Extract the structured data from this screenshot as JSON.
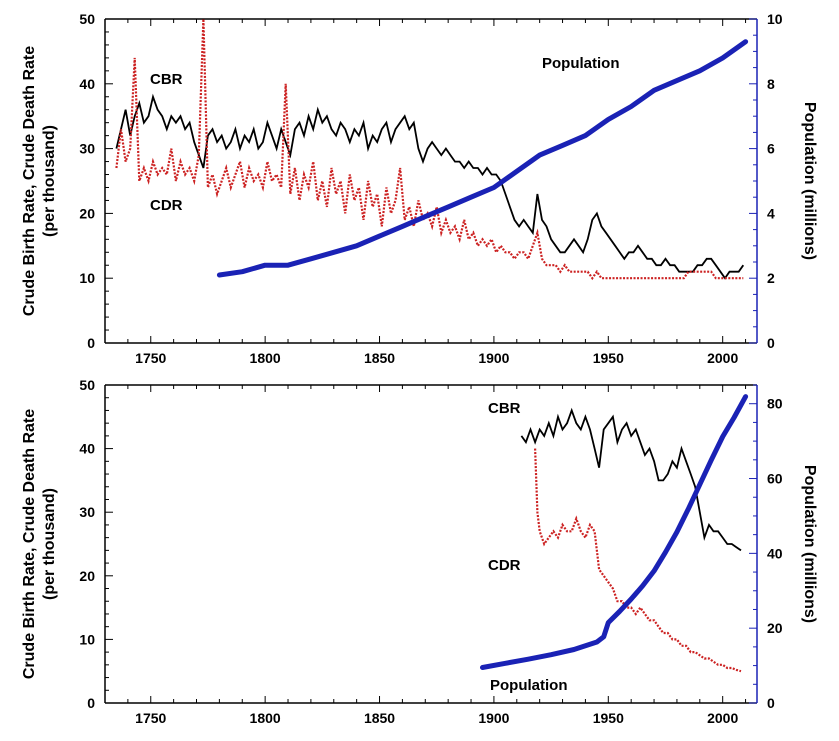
{
  "colors": {
    "cbr": "#000000",
    "cdr": "#cc2222",
    "population": "#1a22b5",
    "right_axis": "#1a22b5",
    "left_axis": "#000000"
  },
  "chart_data": [
    {
      "type": "line",
      "x_ticks": [
        1750,
        1800,
        1850,
        1900,
        1950,
        2000
      ],
      "xlim": [
        1730,
        2015
      ],
      "ylim": [
        0,
        50
      ],
      "y_ticks": [
        0,
        10,
        20,
        30,
        40,
        50
      ],
      "y2lim": [
        0,
        10
      ],
      "y2_ticks": [
        0,
        2,
        4,
        6,
        8,
        10
      ],
      "ylabel_line1": "Crude Birth Rate, Crude Death Rate",
      "ylabel_line2": "(per thousand)",
      "y2label": "Population (millions)",
      "series": [
        {
          "name": "CBR",
          "axis": "left",
          "style": "solid",
          "x": [
            1735,
            1737,
            1739,
            1741,
            1743,
            1745,
            1747,
            1749,
            1751,
            1753,
            1755,
            1757,
            1759,
            1761,
            1763,
            1765,
            1767,
            1769,
            1771,
            1773,
            1775,
            1777,
            1779,
            1781,
            1783,
            1785,
            1787,
            1789,
            1791,
            1793,
            1795,
            1797,
            1799,
            1801,
            1803,
            1805,
            1807,
            1809,
            1811,
            1813,
            1815,
            1817,
            1819,
            1821,
            1823,
            1825,
            1827,
            1829,
            1831,
            1833,
            1835,
            1837,
            1839,
            1841,
            1843,
            1845,
            1847,
            1849,
            1851,
            1853,
            1855,
            1857,
            1859,
            1861,
            1863,
            1865,
            1867,
            1869,
            1871,
            1873,
            1875,
            1877,
            1879,
            1881,
            1883,
            1885,
            1887,
            1889,
            1891,
            1893,
            1895,
            1897,
            1899,
            1901,
            1903,
            1905,
            1907,
            1909,
            1911,
            1913,
            1915,
            1917,
            1919,
            1921,
            1923,
            1925,
            1927,
            1929,
            1931,
            1933,
            1935,
            1937,
            1939,
            1941,
            1943,
            1945,
            1947,
            1949,
            1951,
            1953,
            1955,
            1957,
            1959,
            1961,
            1963,
            1965,
            1967,
            1969,
            1971,
            1973,
            1975,
            1977,
            1979,
            1981,
            1983,
            1985,
            1987,
            1989,
            1991,
            1993,
            1995,
            1997,
            1999,
            2001,
            2003,
            2005,
            2007,
            2009
          ],
          "values": [
            30,
            33,
            36,
            32,
            35,
            37,
            34,
            35,
            38,
            36,
            35,
            33,
            35,
            34,
            35,
            33,
            34,
            31,
            29,
            27,
            32,
            33,
            31,
            32,
            30,
            31,
            33,
            30,
            32,
            31,
            33,
            30,
            31,
            34,
            32,
            30,
            33,
            31,
            29,
            33,
            34,
            32,
            35,
            33,
            36,
            34,
            35,
            33,
            32,
            34,
            33,
            31,
            33,
            32,
            34,
            30,
            32,
            31,
            33,
            34,
            31,
            33,
            34,
            35,
            33,
            34,
            30,
            28,
            30,
            31,
            30,
            29,
            30,
            29,
            28,
            28,
            27,
            28,
            27,
            27,
            26,
            27,
            26,
            26,
            25,
            23,
            21,
            19,
            18,
            19,
            18,
            17,
            23,
            19,
            18,
            16,
            15,
            14,
            14,
            15,
            16,
            15,
            14,
            16,
            19,
            20,
            18,
            17,
            16,
            15,
            14,
            13,
            14,
            14,
            15,
            14,
            13,
            13,
            12,
            12,
            13,
            12,
            12,
            11,
            11,
            11,
            11,
            12,
            12,
            13,
            13,
            12,
            11,
            10,
            11,
            11,
            11,
            12
          ]
        },
        {
          "name": "CDR",
          "axis": "left",
          "style": "dotted",
          "x": [
            1735,
            1737,
            1739,
            1741,
            1743,
            1745,
            1747,
            1749,
            1751,
            1753,
            1755,
            1757,
            1759,
            1761,
            1763,
            1765,
            1767,
            1769,
            1771,
            1773,
            1775,
            1777,
            1779,
            1781,
            1783,
            1785,
            1787,
            1789,
            1791,
            1793,
            1795,
            1797,
            1799,
            1801,
            1803,
            1805,
            1807,
            1809,
            1811,
            1813,
            1815,
            1817,
            1819,
            1821,
            1823,
            1825,
            1827,
            1829,
            1831,
            1833,
            1835,
            1837,
            1839,
            1841,
            1843,
            1845,
            1847,
            1849,
            1851,
            1853,
            1855,
            1857,
            1859,
            1861,
            1863,
            1865,
            1867,
            1869,
            1871,
            1873,
            1875,
            1877,
            1879,
            1881,
            1883,
            1885,
            1887,
            1889,
            1891,
            1893,
            1895,
            1897,
            1899,
            1901,
            1903,
            1905,
            1907,
            1909,
            1911,
            1913,
            1915,
            1917,
            1919,
            1921,
            1923,
            1925,
            1927,
            1929,
            1931,
            1933,
            1935,
            1937,
            1939,
            1941,
            1943,
            1945,
            1947,
            1949,
            1951,
            1953,
            1955,
            1957,
            1959,
            1961,
            1963,
            1965,
            1967,
            1969,
            1971,
            1973,
            1975,
            1977,
            1979,
            1981,
            1983,
            1985,
            1987,
            1989,
            1991,
            1993,
            1995,
            1997,
            1999,
            2001,
            2003,
            2005,
            2007,
            2009
          ],
          "values": [
            27,
            33,
            28,
            30,
            44,
            25,
            27,
            25,
            28,
            26,
            27,
            26,
            30,
            25,
            28,
            26,
            27,
            25,
            29,
            50,
            24,
            26,
            23,
            25,
            27,
            24,
            26,
            28,
            24,
            27,
            25,
            26,
            24,
            28,
            25,
            26,
            24,
            40,
            23,
            27,
            22,
            26,
            24,
            28,
            22,
            25,
            21,
            27,
            23,
            25,
            20,
            26,
            22,
            24,
            19,
            25,
            21,
            23,
            18,
            24,
            20,
            22,
            27,
            19,
            21,
            18,
            22,
            19,
            20,
            18,
            21,
            17,
            19,
            17,
            18,
            16,
            19,
            16,
            17,
            15,
            16,
            15,
            16,
            14,
            15,
            14,
            14,
            13,
            14,
            14,
            13,
            15,
            17,
            13,
            12,
            12,
            12,
            11,
            12,
            11,
            11,
            11,
            11,
            11,
            10,
            11,
            10,
            10,
            10,
            10,
            10,
            10,
            10,
            10,
            10,
            10,
            10,
            10,
            10,
            10,
            10,
            10,
            10,
            10,
            10,
            11,
            11,
            11,
            11,
            11,
            11,
            10,
            10,
            10,
            10,
            10,
            10,
            10
          ]
        },
        {
          "name": "Population",
          "axis": "right",
          "style": "thick",
          "x": [
            1780,
            1790,
            1800,
            1810,
            1820,
            1830,
            1840,
            1850,
            1860,
            1870,
            1880,
            1890,
            1900,
            1910,
            1920,
            1930,
            1940,
            1950,
            1960,
            1970,
            1980,
            1990,
            2000,
            2010
          ],
          "values": [
            2.1,
            2.2,
            2.4,
            2.4,
            2.6,
            2.8,
            3.0,
            3.3,
            3.6,
            3.9,
            4.2,
            4.5,
            4.8,
            5.3,
            5.8,
            6.1,
            6.4,
            6.9,
            7.3,
            7.8,
            8.1,
            8.4,
            8.8,
            9.3
          ]
        }
      ]
    },
    {
      "type": "line",
      "x_ticks": [
        1750,
        1800,
        1850,
        1900,
        1950,
        2000
      ],
      "xlim": [
        1730,
        2015
      ],
      "ylim": [
        0,
        50
      ],
      "y_ticks": [
        0,
        10,
        20,
        30,
        40,
        50
      ],
      "y2lim": [
        0,
        85
      ],
      "y2_ticks": [
        0,
        20,
        40,
        60,
        80
      ],
      "ylabel_line1": "Crude Birth Rate, Crude Death Rate",
      "ylabel_line2": "(per thousand)",
      "y2label": "Population (millions)",
      "series": [
        {
          "name": "CBR",
          "axis": "left",
          "style": "solid",
          "x": [
            1912,
            1914,
            1916,
            1918,
            1920,
            1922,
            1924,
            1926,
            1928,
            1930,
            1932,
            1934,
            1936,
            1938,
            1940,
            1942,
            1944,
            1946,
            1948,
            1950,
            1952,
            1954,
            1956,
            1958,
            1960,
            1962,
            1964,
            1966,
            1968,
            1970,
            1972,
            1974,
            1976,
            1978,
            1980,
            1982,
            1984,
            1986,
            1988,
            1990,
            1992,
            1994,
            1996,
            1998,
            2000,
            2002,
            2004,
            2006,
            2008
          ],
          "values": [
            42,
            41,
            43,
            41,
            43,
            42,
            44,
            42,
            45,
            43,
            44,
            46,
            44,
            43,
            45,
            43,
            40,
            37,
            43,
            44,
            45,
            41,
            43,
            44,
            42,
            43,
            41,
            39,
            40,
            38,
            35,
            35,
            36,
            38,
            37,
            40,
            38,
            36,
            34,
            30,
            26,
            28,
            27,
            27,
            26,
            25,
            25,
            24.5,
            24
          ]
        },
        {
          "name": "CDR",
          "axis": "left",
          "style": "dotted",
          "x": [
            1918,
            1919,
            1920,
            1922,
            1924,
            1926,
            1928,
            1930,
            1932,
            1934,
            1936,
            1938,
            1940,
            1942,
            1944,
            1946,
            1948,
            1950,
            1952,
            1954,
            1956,
            1958,
            1960,
            1962,
            1964,
            1966,
            1968,
            1970,
            1972,
            1974,
            1976,
            1978,
            1980,
            1982,
            1984,
            1986,
            1988,
            1990,
            1992,
            1994,
            1996,
            1998,
            2000,
            2002,
            2004,
            2006,
            2008
          ],
          "values": [
            40,
            30,
            27,
            25,
            26,
            27,
            26,
            28,
            27,
            27,
            29,
            27,
            26,
            28,
            27,
            21,
            20,
            19,
            18,
            16,
            16,
            15,
            15,
            14,
            15,
            14,
            13,
            13,
            12,
            11,
            11,
            10,
            10,
            9,
            9,
            8,
            8,
            7.5,
            7,
            7,
            6.5,
            6,
            6,
            5.5,
            5.5,
            5.2,
            5
          ]
        },
        {
          "name": "Population",
          "axis": "right",
          "style": "thick",
          "x": [
            1895,
            1905,
            1915,
            1925,
            1935,
            1945,
            1948,
            1950,
            1955,
            1960,
            1965,
            1970,
            1975,
            1980,
            1985,
            1990,
            1995,
            2000,
            2005,
            2010
          ],
          "values": [
            9.5,
            10.6,
            11.7,
            12.9,
            14.3,
            16.3,
            17.7,
            21.5,
            24.5,
            27.8,
            31.3,
            35.3,
            40.3,
            45.7,
            51.9,
            58.4,
            64.9,
            71.2,
            76.3,
            81.9
          ]
        }
      ]
    }
  ],
  "chart_labels": [
    {
      "cbr": "CBR",
      "cdr": "CDR",
      "population": "Population"
    },
    {
      "cbr": "CBR",
      "cdr": "CDR",
      "population": "Population"
    }
  ]
}
